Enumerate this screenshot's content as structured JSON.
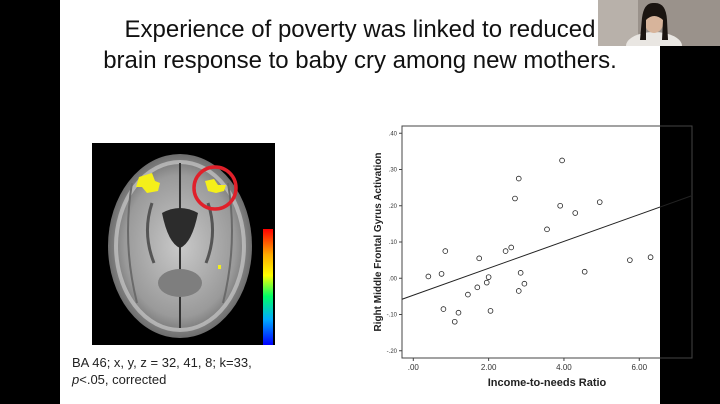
{
  "slide": {
    "title_line1": "Experience of poverty was linked to reduced",
    "title_line2": "brain response to baby cry among new mothers.",
    "caption_line1": "BA 46; x, y, z = 32, 41, 8; k=33,",
    "caption_p": "p",
    "caption_line2_rest": "<.05, corrected"
  },
  "icons": {
    "brain_image": "brain-scan-image",
    "webcam": "presenter-webcam-icon"
  },
  "colors": {
    "highlight_circle": "#e0202a",
    "activation": "#f4ef1a",
    "regression_line": "#222222"
  },
  "chart_data": {
    "type": "scatter",
    "title": "",
    "xlabel": "Income-to-needs Ratio",
    "ylabel": "Right Middle Frontal Gyrus Activation",
    "xlim": [
      -0.3,
      7.4
    ],
    "ylim": [
      -0.22,
      0.42
    ],
    "x_ticks": [
      0,
      2,
      4,
      6
    ],
    "x_tick_labels": [
      ".00",
      "2.00",
      "4.00",
      "6.00"
    ],
    "y_ticks": [
      -0.2,
      -0.1,
      0,
      0.1,
      0.2,
      0.3,
      0.4
    ],
    "y_tick_labels": [
      "-.20",
      "-.10",
      ".00",
      ".10",
      ".20",
      ".30",
      ".40"
    ],
    "grid": false,
    "legend": "none",
    "points": [
      {
        "x": 0.4,
        "y": 0.005
      },
      {
        "x": 0.75,
        "y": 0.012
      },
      {
        "x": 0.8,
        "y": -0.085
      },
      {
        "x": 0.85,
        "y": 0.075
      },
      {
        "x": 1.1,
        "y": -0.12
      },
      {
        "x": 1.2,
        "y": -0.095
      },
      {
        "x": 1.45,
        "y": -0.045
      },
      {
        "x": 1.7,
        "y": -0.025
      },
      {
        "x": 1.75,
        "y": 0.055
      },
      {
        "x": 1.95,
        "y": -0.012
      },
      {
        "x": 2.0,
        "y": 0.003
      },
      {
        "x": 2.05,
        "y": -0.09
      },
      {
        "x": 2.45,
        "y": 0.075
      },
      {
        "x": 2.6,
        "y": 0.085
      },
      {
        "x": 2.7,
        "y": 0.22
      },
      {
        "x": 2.8,
        "y": 0.275
      },
      {
        "x": 2.8,
        "y": -0.035
      },
      {
        "x": 2.85,
        "y": 0.015
      },
      {
        "x": 2.95,
        "y": -0.015
      },
      {
        "x": 3.55,
        "y": 0.135
      },
      {
        "x": 3.9,
        "y": 0.2
      },
      {
        "x": 3.95,
        "y": 0.325
      },
      {
        "x": 4.3,
        "y": 0.18
      },
      {
        "x": 4.55,
        "y": 0.018
      },
      {
        "x": 4.95,
        "y": 0.21
      },
      {
        "x": 5.75,
        "y": 0.05
      },
      {
        "x": 6.3,
        "y": 0.058
      }
    ],
    "fit_line": {
      "x": [
        -0.3,
        7.4
      ],
      "y": [
        -0.058,
        0.228
      ]
    }
  }
}
